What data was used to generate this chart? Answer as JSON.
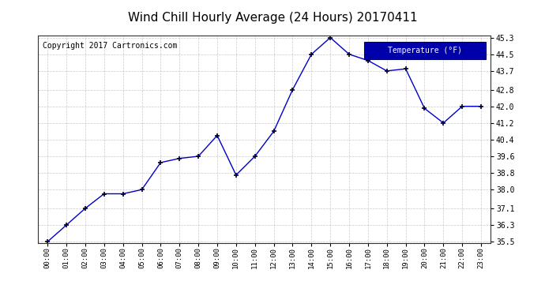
{
  "title": "Wind Chill Hourly Average (24 Hours) 20170411",
  "copyright_text": "Copyright 2017 Cartronics.com",
  "legend_label": "Temperature (°F)",
  "hours": [
    0,
    1,
    2,
    3,
    4,
    5,
    6,
    7,
    8,
    9,
    10,
    11,
    12,
    13,
    14,
    15,
    16,
    17,
    18,
    19,
    20,
    21,
    22,
    23
  ],
  "x_labels": [
    "00:00",
    "01:00",
    "02:00",
    "03:00",
    "04:00",
    "05:00",
    "06:00",
    "07:00",
    "08:00",
    "09:00",
    "10:00",
    "11:00",
    "12:00",
    "13:00",
    "14:00",
    "15:00",
    "16:00",
    "17:00",
    "18:00",
    "19:00",
    "20:00",
    "21:00",
    "22:00",
    "23:00"
  ],
  "values": [
    35.5,
    36.3,
    37.1,
    37.8,
    37.8,
    38.0,
    39.3,
    39.5,
    39.6,
    40.6,
    38.7,
    39.6,
    40.8,
    42.8,
    44.5,
    45.3,
    44.5,
    44.2,
    43.7,
    43.8,
    41.9,
    41.2,
    42.0,
    42.0
  ],
  "ylim_min": 35.5,
  "ylim_max": 45.3,
  "line_color": "#0000cc",
  "marker_color": "#000022",
  "bg_color": "#ffffff",
  "grid_color": "#bbbbbb",
  "title_fontsize": 11,
  "copyright_fontsize": 7,
  "legend_bg": "#0000aa",
  "legend_text_color": "#ffffff",
  "yticks": [
    35.5,
    36.3,
    37.1,
    38.0,
    38.8,
    39.6,
    40.4,
    41.2,
    42.0,
    42.8,
    43.7,
    44.5,
    45.3
  ]
}
